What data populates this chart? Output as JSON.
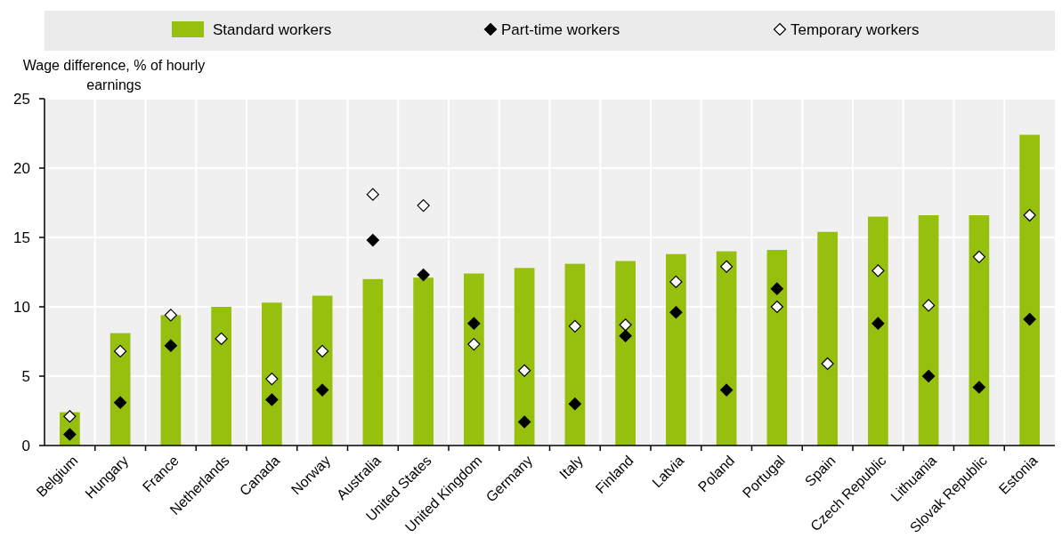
{
  "chart_data": {
    "type": "bar",
    "ylabel": "Wage difference, % of hourly earnings",
    "categories": [
      "Belgium",
      "Hungary",
      "France",
      "Netherlands",
      "Canada",
      "Norway",
      "Australia",
      "United States",
      "United Kingdom",
      "Germany",
      "Italy",
      "Finland",
      "Latvia",
      "Poland",
      "Portugal",
      "Spain",
      "Czech Republic",
      "Lithuania",
      "Slovak Republic",
      "Estonia"
    ],
    "series": [
      {
        "name": "Standard workers",
        "color": "#97bf0d",
        "values": [
          2.4,
          8.1,
          9.4,
          10.0,
          10.3,
          10.8,
          12.0,
          12.1,
          12.4,
          12.8,
          13.1,
          13.3,
          13.8,
          14.0,
          14.1,
          15.4,
          16.5,
          16.6,
          16.6,
          22.4
        ]
      },
      {
        "name": "Part-time workers",
        "type": "scatter",
        "color": "#000000",
        "marker": "diamond",
        "values": [
          0.8,
          3.1,
          7.2,
          null,
          3.3,
          4.0,
          14.8,
          12.3,
          8.8,
          1.7,
          3.0,
          7.9,
          9.6,
          4.0,
          11.3,
          null,
          8.8,
          5.0,
          4.2,
          9.1
        ]
      },
      {
        "name": "Temporary workers",
        "type": "scatter",
        "color": "#ffffff",
        "marker": "diamond",
        "values": [
          2.1,
          6.8,
          9.4,
          7.7,
          4.8,
          6.8,
          18.1,
          17.3,
          7.3,
          5.4,
          8.6,
          8.7,
          11.8,
          12.9,
          10.0,
          5.9,
          12.6,
          10.1,
          13.6,
          16.6
        ]
      }
    ],
    "ylim": [
      0,
      25
    ],
    "yticks": [
      0,
      5,
      10,
      15,
      20,
      25
    ],
    "grid": true,
    "legend": "top"
  }
}
